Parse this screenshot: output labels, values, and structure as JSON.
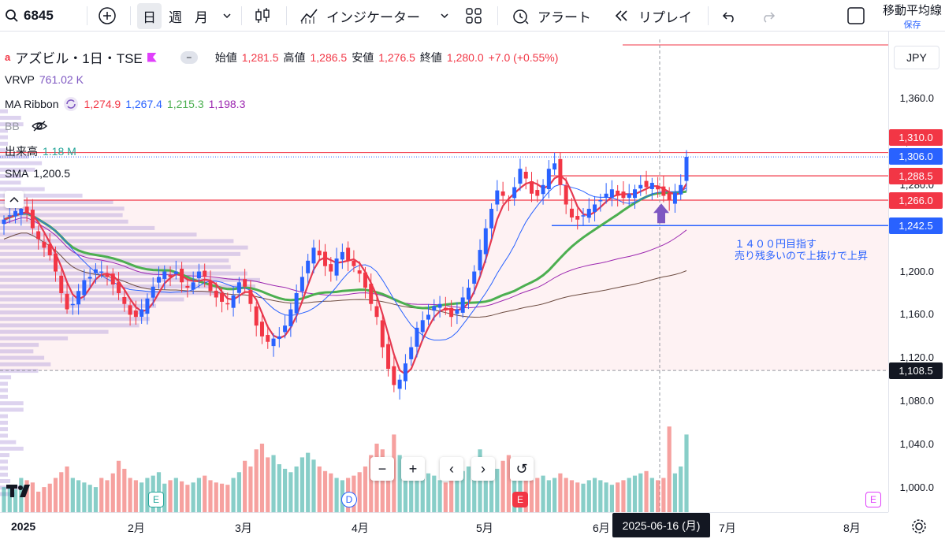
{
  "toolbar": {
    "symbol": "6845",
    "timeframes": [
      "日",
      "週",
      "月"
    ],
    "indicators_label": "インジケーター",
    "alert_label": "アラート",
    "replay_label": "リプレイ",
    "layout_name": "移動平均線",
    "saved_label": "保存"
  },
  "legend": {
    "title": "アズビル・1日・TSE",
    "ohlc": {
      "open_label": "始値",
      "open": "1,281.5",
      "high_label": "高値",
      "high": "1,286.5",
      "low_label": "安値",
      "low": "1,276.5",
      "close_label": "終値",
      "close": "1,280.0",
      "change": "+7.0 (+0.55%)"
    },
    "vrvp": {
      "name": "VRVP",
      "value": "761.02 K"
    },
    "ma_ribbon": {
      "name": "MA Ribbon",
      "values": [
        "1,274.9",
        "1,267.4",
        "1,215.3",
        "1,198.3"
      ]
    },
    "bb": {
      "name": "BB"
    },
    "volume": {
      "name": "出来高",
      "value": "1.18 M"
    },
    "sma": {
      "name": "SMA",
      "value": "1,200.5"
    }
  },
  "currency": "JPY",
  "annotation": {
    "line1": "１４００円目指す",
    "line2": "売り残多いので上抜けで上昇"
  },
  "nav_buttons": [
    "−",
    "+",
    "‹",
    "›",
    "↺"
  ],
  "colors": {
    "up": "#26a69a",
    "down": "#ef5350",
    "candle_up": "#2962ff",
    "candle_down": "#f23645",
    "ma_red": "#e53950",
    "ma_blue": "#2962ff",
    "ma_green": "#4caf50",
    "ma_purple": "#9c27b0"
  },
  "price_labels": [
    {
      "value": "1,310.0",
      "color": "#f23645"
    },
    {
      "value": "1,306.0",
      "color": "#2962ff"
    },
    {
      "value": "1,288.5",
      "color": "#f23645"
    },
    {
      "value": "1,266.0",
      "color": "#f23645"
    },
    {
      "value": "1,242.5",
      "color": "#2962ff"
    },
    {
      "value": "1,108.5",
      "color": "#131722"
    }
  ],
  "time_axis": {
    "ticks": [
      "2025",
      "2月",
      "3月",
      "4月",
      "5月",
      "6月",
      "7月",
      "8月"
    ],
    "cursor": "2025-06-16 (月)"
  },
  "events": [
    "E",
    "D",
    "E",
    "E"
  ],
  "chart_data": {
    "type": "candlestick",
    "y_ticks": [
      "1,360.0",
      "1,320.0",
      "1,280.0",
      "1,240.0",
      "1,200.0",
      "1,160.0",
      "1,120.0",
      "1,080.0",
      "1,040.0",
      "1,000.0"
    ],
    "ylim": [
      985,
      1385
    ],
    "series_close": [
      1248,
      1252,
      1256,
      1258,
      1254,
      1240,
      1230,
      1222,
      1215,
      1200,
      1180,
      1165,
      1170,
      1182,
      1192,
      1195,
      1202,
      1200,
      1195,
      1188,
      1180,
      1170,
      1160,
      1158,
      1165,
      1175,
      1186,
      1195,
      1200,
      1195,
      1200,
      1190,
      1185,
      1190,
      1200,
      1195,
      1182,
      1176,
      1172,
      1170,
      1178,
      1190,
      1186,
      1170,
      1150,
      1140,
      1135,
      1138,
      1140,
      1150,
      1165,
      1180,
      1195,
      1210,
      1222,
      1215,
      1205,
      1200,
      1212,
      1218,
      1210,
      1205,
      1198,
      1185,
      1170,
      1158,
      1130,
      1110,
      1095,
      1100,
      1115,
      1130,
      1148,
      1155,
      1160,
      1168,
      1170,
      1164,
      1158,
      1165,
      1176,
      1185,
      1200,
      1220,
      1240,
      1258,
      1275,
      1270,
      1266,
      1278,
      1295,
      1286,
      1272,
      1270,
      1280,
      1295,
      1300,
      1280,
      1262,
      1250,
      1248,
      1252,
      1258,
      1262,
      1266,
      1272,
      1276,
      1270,
      1268,
      1272,
      1276,
      1280,
      1278,
      1282,
      1276,
      1270,
      1266,
      1273,
      1280,
      1306
    ],
    "volume": [
      22,
      24,
      20,
      30,
      28,
      26,
      18,
      22,
      25,
      30,
      35,
      40,
      30,
      28,
      26,
      24,
      22,
      30,
      28,
      34,
      45,
      38,
      30,
      28,
      26,
      30,
      32,
      35,
      25,
      28,
      30,
      27,
      24,
      26,
      30,
      32,
      28,
      26,
      25,
      24,
      30,
      35,
      45,
      40,
      55,
      60,
      48,
      50,
      42,
      38,
      35,
      40,
      48,
      52,
      46,
      40,
      36,
      34,
      30,
      28,
      30,
      32,
      35,
      40,
      50,
      60,
      55,
      45,
      68,
      50,
      42,
      38,
      35,
      30,
      34,
      32,
      28,
      26,
      30,
      34,
      36,
      40,
      42,
      55,
      44,
      40,
      38,
      45,
      50,
      38,
      34,
      30,
      28,
      30,
      32,
      28,
      30,
      34,
      30,
      28,
      26,
      25,
      28,
      30,
      28,
      26,
      24,
      26,
      28,
      30,
      32,
      34,
      36,
      30,
      28,
      30,
      75,
      34,
      40,
      68
    ]
  }
}
